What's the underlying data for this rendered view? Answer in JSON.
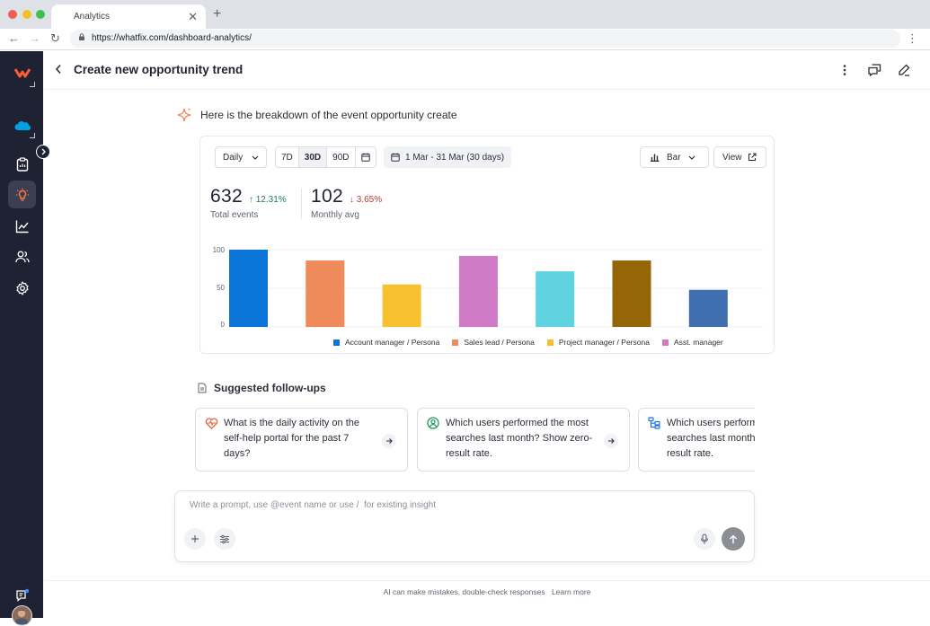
{
  "browser": {
    "tab_title": "Analytics",
    "url": "https://whatfix.com/dashboard-analytics/"
  },
  "header": {
    "title": "Create new opportunity trend"
  },
  "intro": {
    "text": "Here is the breakdown of the event opportunity create"
  },
  "controls": {
    "granularity": "Daily",
    "ranges": [
      "7D",
      "30D",
      "90D"
    ],
    "selected_range": "30D",
    "date_range": "1 Mar - 31 Mar (30 days)",
    "chart_type": "Bar",
    "view_label": "View"
  },
  "metrics": {
    "total": {
      "value": "632",
      "delta": "12.31%",
      "label": "Total events"
    },
    "monthly": {
      "value": "102",
      "delta": "3.65%",
      "label": "Monthly avg"
    }
  },
  "colors": {
    "up": "#1a7f4b",
    "down": "#c0392b",
    "bars": [
      "#0b74d9",
      "#ef8a5a",
      "#f6c02e",
      "#ce7ac5",
      "#5fd3e0",
      "#956606",
      "#3f6fae"
    ]
  },
  "chart_data": {
    "type": "bar",
    "categories": [
      "Account manager / Persona",
      "Sales lead / Persona",
      "Project manager / Persona",
      "Asst. manager",
      "",
      "",
      ""
    ],
    "values": [
      100,
      86,
      55,
      92,
      72,
      86,
      48
    ],
    "ylim": [
      0,
      100
    ],
    "yticks": [
      "100",
      "50",
      "0"
    ],
    "legend": [
      {
        "label": "Account manager / Persona",
        "color": "#0b74d9"
      },
      {
        "label": "Sales lead / Persona",
        "color": "#ef8a5a"
      },
      {
        "label": "Project manager / Persona",
        "color": "#f6c02e"
      },
      {
        "label": "Asst. manager",
        "color": "#ce7ac5"
      }
    ],
    "grid": true
  },
  "followups": {
    "title": "Suggested follow-ups",
    "items": [
      {
        "text": "What is the daily activity on the self-help portal for the past 7 days?",
        "icon": "heart-pulse-icon"
      },
      {
        "text": "Which users performed the most searches last month? Show zero-result rate.",
        "icon": "user-circle-icon"
      },
      {
        "text": "Which users performed the most searches last month? Show zero-result rate.",
        "icon": "hierarchy-icon"
      }
    ]
  },
  "prompt": {
    "placeholder": "Write a prompt, use @event name or use /  for existing insight"
  },
  "footer": {
    "text": "AI can make mistakes, double-check responses",
    "link": "Learn more"
  }
}
